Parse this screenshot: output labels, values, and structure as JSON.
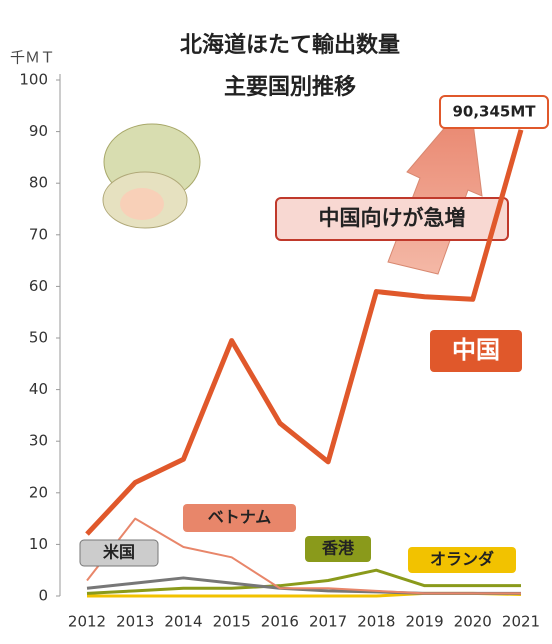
{
  "chart_data": {
    "type": "line",
    "title": "北海道ほたて輸出数量",
    "subtitle": "主要国別推移",
    "y_label": "千ＭＴ",
    "categories": [
      "2012",
      "2013",
      "2014",
      "2015",
      "2016",
      "2017",
      "2018",
      "2019",
      "2020",
      "2021"
    ],
    "series": [
      {
        "name": "中国",
        "color": "#e0582b",
        "values": [
          12,
          22,
          26.5,
          49.5,
          33.5,
          26,
          59,
          58,
          57.5,
          90.345
        ],
        "value_labels": [
          null,
          null,
          null,
          null,
          null,
          null,
          null,
          null,
          null,
          "90,345MT"
        ]
      },
      {
        "name": "ベトナム",
        "color": "#e8866a",
        "values": [
          3,
          15,
          9.5,
          7.5,
          1.5,
          1.5,
          1,
          0.5,
          0.5,
          0.5
        ]
      },
      {
        "name": "米国",
        "color": "#777777",
        "values": [
          1.5,
          2.5,
          3.5,
          2.5,
          1.5,
          1,
          0.8,
          0.5,
          0.5,
          0.5
        ]
      },
      {
        "name": "香港",
        "color": "#8a9a1b",
        "values": [
          0.5,
          1,
          1.5,
          1.5,
          2,
          3,
          5,
          2,
          2,
          2
        ]
      },
      {
        "name": "オランダ",
        "color": "#f2c200",
        "values": [
          0,
          0,
          0,
          0,
          0,
          0,
          0,
          0.5,
          0.5,
          0.3
        ]
      }
    ],
    "annotations": [
      "中国向けが急増"
    ],
    "ylim": [
      0,
      100
    ],
    "yticks": [
      0,
      10,
      20,
      30,
      40,
      50,
      60,
      70,
      80,
      90,
      100
    ],
    "grid": false
  }
}
